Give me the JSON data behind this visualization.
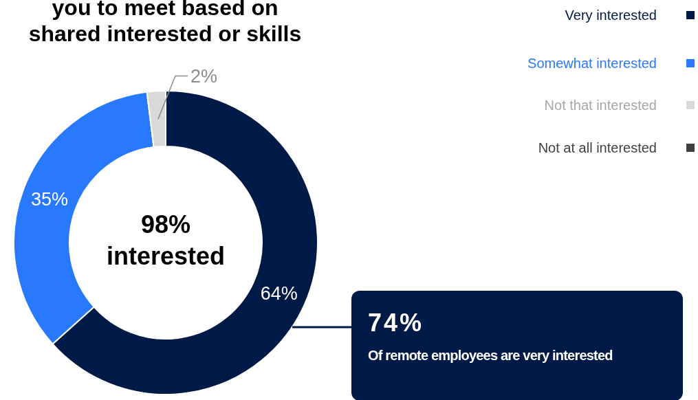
{
  "chart_data": {
    "type": "donut",
    "title": "you to meet based on shared interested or skills",
    "categories": [
      "Very interested",
      "Somewhat interested",
      "Not that interested",
      "Not at all interested"
    ],
    "values": [
      64,
      35,
      2,
      0
    ],
    "colors": [
      "#001a47",
      "#2979ff",
      "#d9d9d9",
      "#404040"
    ],
    "value_labels": [
      "64%",
      "35%",
      "2%",
      null
    ],
    "legend": "top right",
    "annotations": [
      "98% interested",
      "74%",
      "Of remote employees are very interested"
    ]
  }
}
